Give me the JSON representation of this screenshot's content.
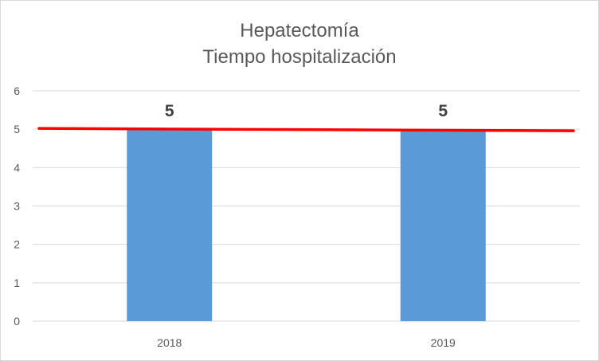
{
  "chart_data": {
    "type": "bar",
    "title": [
      "Hepatectomía",
      "Tiempo hospitalización"
    ],
    "categories": [
      "2018",
      "2019"
    ],
    "values": [
      5,
      5
    ],
    "data_labels": [
      "5",
      "5"
    ],
    "ylim": [
      0,
      6
    ],
    "y_ticks": [
      "0",
      "1",
      "2",
      "3",
      "4",
      "5",
      "6"
    ],
    "reference_line": {
      "value": 5,
      "color": "#ff0000"
    },
    "grid": true,
    "legend": "none",
    "bar_color": "#5b9bd5",
    "gridline_color": "#d9d9d9"
  }
}
